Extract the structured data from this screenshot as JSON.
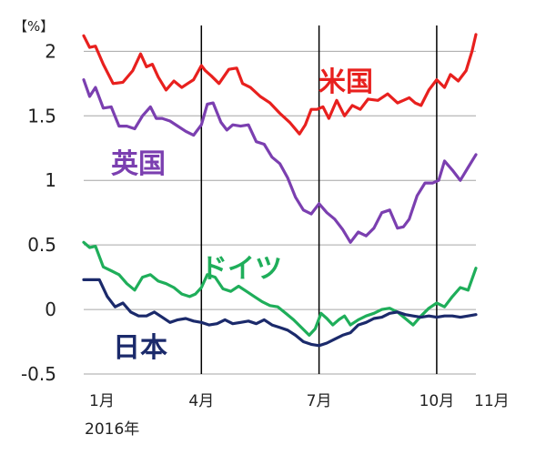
{
  "chart_data": {
    "type": "line",
    "unit_label": "【%】",
    "year_label": "2016年",
    "ylim": [
      -0.5,
      2.2
    ],
    "yticks": [
      {
        "value": 2,
        "label": "2"
      },
      {
        "value": 1.5,
        "label": "1.5"
      },
      {
        "value": 1,
        "label": "1"
      },
      {
        "value": 0.5,
        "label": "0.5"
      },
      {
        "value": 0,
        "label": "0"
      },
      {
        "value": -0.5,
        "label": "-0.5"
      }
    ],
    "xlim": [
      1,
      11
    ],
    "xticks": [
      {
        "value": 1,
        "label": "1月",
        "line": false
      },
      {
        "value": 4,
        "label": "4月",
        "line": true
      },
      {
        "value": 7,
        "label": "7月",
        "line": true
      },
      {
        "value": 10,
        "label": "10月",
        "line": true
      },
      {
        "value": 11,
        "label": "11月",
        "line": false
      }
    ],
    "grid": true,
    "series": [
      {
        "name": "米国",
        "color": "#e8201e",
        "x": [
          1.0,
          1.15,
          1.3,
          1.5,
          1.75,
          2.0,
          2.25,
          2.45,
          2.6,
          2.75,
          2.9,
          3.1,
          3.3,
          3.5,
          3.65,
          3.8,
          4.0,
          4.1,
          4.25,
          4.45,
          4.7,
          4.9,
          5.05,
          5.25,
          5.5,
          5.75,
          6.0,
          6.25,
          6.5,
          6.65,
          6.8,
          6.95,
          7.1,
          7.25,
          7.45,
          7.65,
          7.85,
          8.05,
          8.25,
          8.5,
          8.75,
          9.0,
          9.15,
          9.3,
          9.45,
          9.6,
          9.8,
          10.0,
          10.2,
          10.35,
          10.55,
          10.75,
          10.9,
          11.0
        ],
        "y": [
          2.12,
          2.03,
          2.04,
          1.9,
          1.75,
          1.76,
          1.85,
          1.98,
          1.88,
          1.9,
          1.8,
          1.7,
          1.77,
          1.72,
          1.75,
          1.78,
          1.89,
          1.85,
          1.81,
          1.75,
          1.86,
          1.87,
          1.75,
          1.72,
          1.65,
          1.6,
          1.52,
          1.45,
          1.36,
          1.43,
          1.55,
          1.55,
          1.57,
          1.48,
          1.62,
          1.5,
          1.58,
          1.55,
          1.63,
          1.62,
          1.67,
          1.6,
          1.62,
          1.64,
          1.6,
          1.58,
          1.7,
          1.78,
          1.72,
          1.82,
          1.77,
          1.85,
          2.0,
          2.13
        ]
      },
      {
        "name": "英国",
        "color": "#7b3fb0",
        "x": [
          1.0,
          1.15,
          1.3,
          1.5,
          1.7,
          1.9,
          2.1,
          2.3,
          2.5,
          2.7,
          2.85,
          3.0,
          3.2,
          3.4,
          3.6,
          3.8,
          4.0,
          4.15,
          4.3,
          4.5,
          4.65,
          4.8,
          5.0,
          5.2,
          5.4,
          5.6,
          5.8,
          6.0,
          6.2,
          6.4,
          6.6,
          6.8,
          7.0,
          7.2,
          7.4,
          7.6,
          7.8,
          8.0,
          8.2,
          8.4,
          8.6,
          8.8,
          9.0,
          9.15,
          9.3,
          9.5,
          9.7,
          9.9,
          10.05,
          10.2,
          10.4,
          10.6,
          10.8,
          11.0
        ],
        "y": [
          1.78,
          1.65,
          1.72,
          1.56,
          1.57,
          1.42,
          1.42,
          1.4,
          1.5,
          1.57,
          1.48,
          1.48,
          1.46,
          1.42,
          1.38,
          1.35,
          1.43,
          1.59,
          1.6,
          1.45,
          1.39,
          1.43,
          1.42,
          1.43,
          1.3,
          1.28,
          1.18,
          1.13,
          1.02,
          0.87,
          0.77,
          0.74,
          0.82,
          0.75,
          0.7,
          0.62,
          0.52,
          0.6,
          0.57,
          0.63,
          0.75,
          0.77,
          0.63,
          0.64,
          0.7,
          0.88,
          0.98,
          0.98,
          1.0,
          1.15,
          1.08,
          1.0,
          1.1,
          1.2
        ]
      },
      {
        "name": "ドイツ",
        "color": "#1fae5a",
        "x": [
          1.0,
          1.15,
          1.3,
          1.5,
          1.7,
          1.9,
          2.1,
          2.3,
          2.5,
          2.7,
          2.9,
          3.1,
          3.3,
          3.5,
          3.7,
          3.85,
          4.0,
          4.15,
          4.35,
          4.55,
          4.75,
          4.95,
          5.15,
          5.35,
          5.55,
          5.75,
          5.95,
          6.15,
          6.35,
          6.55,
          6.75,
          6.9,
          7.05,
          7.2,
          7.35,
          7.5,
          7.65,
          7.8,
          8.0,
          8.2,
          8.4,
          8.6,
          8.8,
          9.0,
          9.2,
          9.4,
          9.6,
          9.8,
          10.0,
          10.2,
          10.4,
          10.6,
          10.8,
          11.0
        ],
        "y": [
          0.52,
          0.48,
          0.49,
          0.33,
          0.3,
          0.27,
          0.2,
          0.15,
          0.25,
          0.27,
          0.22,
          0.2,
          0.17,
          0.12,
          0.1,
          0.12,
          0.17,
          0.27,
          0.25,
          0.16,
          0.14,
          0.18,
          0.14,
          0.1,
          0.06,
          0.03,
          0.02,
          -0.03,
          -0.08,
          -0.14,
          -0.2,
          -0.15,
          -0.03,
          -0.07,
          -0.12,
          -0.08,
          -0.05,
          -0.12,
          -0.08,
          -0.05,
          -0.03,
          0.0,
          0.01,
          -0.02,
          -0.07,
          -0.12,
          -0.05,
          0.01,
          0.05,
          0.02,
          0.1,
          0.17,
          0.15,
          0.32
        ]
      },
      {
        "name": "日本",
        "color": "#1b2a6b",
        "x": [
          1.0,
          1.2,
          1.4,
          1.6,
          1.8,
          2.0,
          2.2,
          2.4,
          2.6,
          2.8,
          3.0,
          3.2,
          3.4,
          3.6,
          3.8,
          4.0,
          4.2,
          4.4,
          4.6,
          4.8,
          5.0,
          5.2,
          5.4,
          5.6,
          5.8,
          6.0,
          6.2,
          6.4,
          6.6,
          6.8,
          7.0,
          7.2,
          7.4,
          7.6,
          7.8,
          8.0,
          8.2,
          8.4,
          8.6,
          8.8,
          9.0,
          9.2,
          9.4,
          9.6,
          9.8,
          10.0,
          10.2,
          10.4,
          10.6,
          10.8,
          11.0
        ],
        "y": [
          0.23,
          0.23,
          0.23,
          0.1,
          0.02,
          0.05,
          -0.02,
          -0.05,
          -0.05,
          -0.02,
          -0.06,
          -0.1,
          -0.08,
          -0.07,
          -0.09,
          -0.1,
          -0.12,
          -0.11,
          -0.08,
          -0.11,
          -0.1,
          -0.09,
          -0.11,
          -0.08,
          -0.12,
          -0.14,
          -0.16,
          -0.2,
          -0.25,
          -0.27,
          -0.28,
          -0.26,
          -0.23,
          -0.2,
          -0.18,
          -0.12,
          -0.1,
          -0.07,
          -0.06,
          -0.03,
          -0.02,
          -0.04,
          -0.05,
          -0.06,
          -0.05,
          -0.06,
          -0.05,
          -0.05,
          -0.06,
          -0.05,
          -0.04
        ]
      }
    ]
  }
}
